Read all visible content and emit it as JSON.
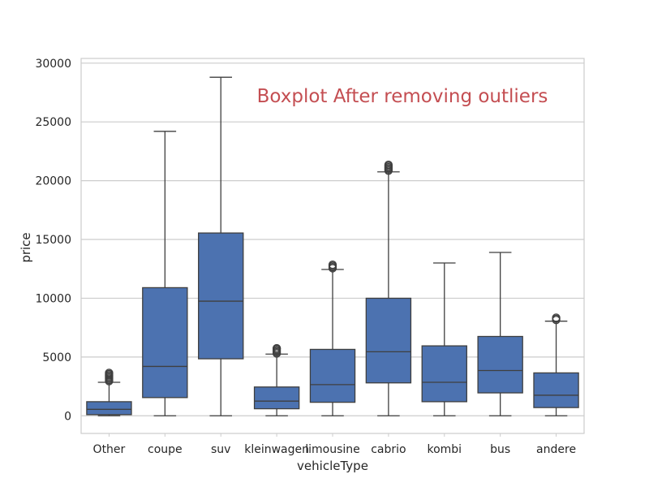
{
  "chart_data": {
    "type": "box",
    "title": "Boxplot After removing outliers",
    "xlabel": "vehicleType",
    "ylabel": "price",
    "ylim": [
      -1500,
      30400
    ],
    "yticks": [
      0,
      5000,
      10000,
      15000,
      20000,
      25000,
      30000
    ],
    "grid": "horizontal",
    "box_color": "#4c72b0",
    "line_color": "#3f3f3f",
    "title_color": "#c44e52",
    "categories": [
      "Other",
      "coupe",
      "suv",
      "kleinwagen",
      "limousine",
      "cabrio",
      "kombi",
      "bus",
      "andere"
    ],
    "boxes": [
      {
        "whisker_low": 0,
        "q1": 100,
        "median": 550,
        "q3": 1200,
        "whisker_high": 2850,
        "outliers": [
          2950,
          3050,
          3150,
          3250,
          3350,
          3450,
          3550,
          3650
        ]
      },
      {
        "whisker_low": 0,
        "q1": 1550,
        "median": 4200,
        "q3": 10900,
        "whisker_high": 24200,
        "outliers": []
      },
      {
        "whisker_low": 0,
        "q1": 4850,
        "median": 9750,
        "q3": 15550,
        "whisker_high": 28800,
        "outliers": []
      },
      {
        "whisker_low": 0,
        "q1": 600,
        "median": 1250,
        "q3": 2450,
        "whisker_high": 5250,
        "outliers": [
          5300,
          5400,
          5500,
          5600,
          5700,
          5750
        ]
      },
      {
        "whisker_low": 0,
        "q1": 1150,
        "median": 2650,
        "q3": 5650,
        "whisker_high": 12450,
        "outliers": [
          12550,
          12650,
          12750,
          12850
        ]
      },
      {
        "whisker_low": 0,
        "q1": 2800,
        "median": 5450,
        "q3": 10000,
        "whisker_high": 20750,
        "outliers": [
          20850,
          20950,
          21050,
          21150,
          21250,
          21350
        ]
      },
      {
        "whisker_low": 0,
        "q1": 1200,
        "median": 2850,
        "q3": 5950,
        "whisker_high": 13000,
        "outliers": []
      },
      {
        "whisker_low": 0,
        "q1": 1950,
        "median": 3850,
        "q3": 6750,
        "whisker_high": 13900,
        "outliers": []
      },
      {
        "whisker_low": 0,
        "q1": 700,
        "median": 1750,
        "q3": 3650,
        "whisker_high": 8050,
        "outliers": [
          8150,
          8250,
          8350
        ]
      }
    ]
  }
}
